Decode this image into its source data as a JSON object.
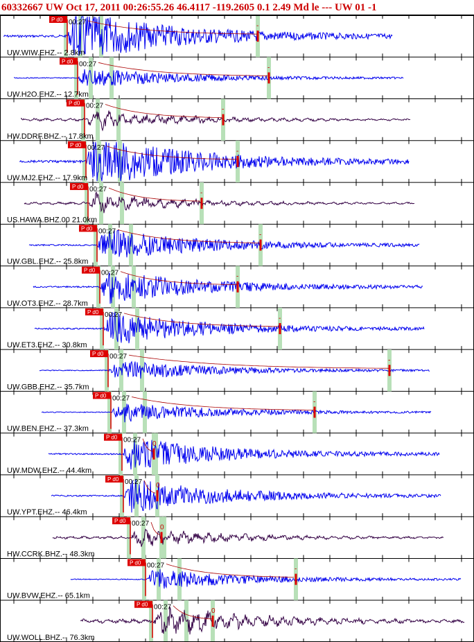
{
  "header": {
    "text": "60332667 UW Oct 17, 2011 00:26:55.26    46.4117 -119.2605   0.1 2.49 Md le --- UW 01   -1"
  },
  "chart_data": {
    "type": "line",
    "title": "60332667 UW Oct 17, 2011 00:26:55.26    46.4117 -119.2605   0.1 2.49 Md le --- UW 01   -1",
    "time_tick_label": "00:27",
    "pick_label": "P d0",
    "colors": {
      "trace_ehz": "#0000ee",
      "trace_bhz": "#330044",
      "pick": "#dd0000",
      "window": "#b8e0b8"
    },
    "traces": [
      {
        "label": "UW.WIW.EHZ.-- 2.8km",
        "channel": "EHZ",
        "amplitude": "clipped",
        "duration_marker": "-"
      },
      {
        "label": "UW.H2O.EHZ.-- 12.7km",
        "channel": "EHZ",
        "amplitude": "medium",
        "duration_marker": "-"
      },
      {
        "label": "HW.DDRF.BHZ.-- 17.8km",
        "channel": "BHZ",
        "amplitude": "medium",
        "duration_marker": "-"
      },
      {
        "label": "UW.MJ2.EHZ.-- 17.9km",
        "channel": "EHZ",
        "amplitude": "clipped",
        "duration_marker": "-"
      },
      {
        "label": "US.HAWA.BHZ.00 21.0km",
        "channel": "BHZ",
        "amplitude": "medium",
        "duration_marker": "-"
      },
      {
        "label": "UW.GBL.EHZ.-- 25.8km",
        "channel": "EHZ",
        "amplitude": "large",
        "duration_marker": "-"
      },
      {
        "label": "UW.OT3.EHZ.-- 28.7km",
        "channel": "EHZ",
        "amplitude": "large",
        "duration_marker": "-"
      },
      {
        "label": "UW.ET3.EHZ.-- 30.8km",
        "channel": "EHZ",
        "amplitude": "large",
        "duration_marker": "-"
      },
      {
        "label": "UW.GBB.EHZ.-- 35.7km",
        "channel": "EHZ",
        "amplitude": "medium",
        "duration_marker": "-"
      },
      {
        "label": "UW.BEN.EHZ.-- 37.3km",
        "channel": "EHZ",
        "amplitude": "medium",
        "duration_marker": "-"
      },
      {
        "label": "UW.MDW.EHZ.-- 44.4km",
        "channel": "EHZ",
        "amplitude": "large",
        "duration_marker": "0"
      },
      {
        "label": "UW.YPT.EHZ.-- 46.4km",
        "channel": "EHZ",
        "amplitude": "large",
        "duration_marker": "0"
      },
      {
        "label": "HW.CCRK.BHZ.-- 48.3km",
        "channel": "BHZ",
        "amplitude": "medium",
        "duration_marker": "0"
      },
      {
        "label": "UW.BVW.EHZ.-- 65.1km",
        "channel": "EHZ",
        "amplitude": "medium",
        "duration_marker": "-"
      },
      {
        "label": "UW.WOLL.BHZ.-- 76.3km",
        "channel": "BHZ",
        "amplitude": "large",
        "duration_marker": "0"
      }
    ]
  }
}
